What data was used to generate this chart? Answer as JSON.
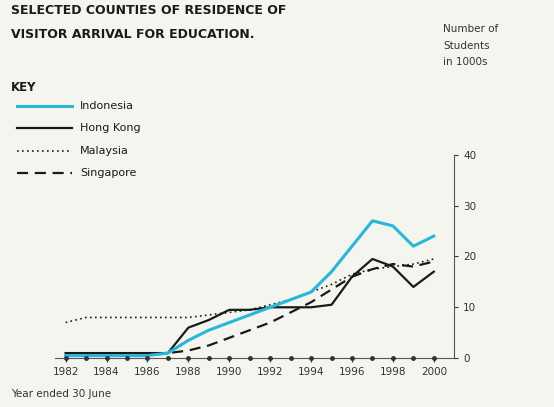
{
  "title_line1": "SELECTED COUNTIES OF RESIDENCE OF",
  "title_line2": "VISITOR ARRIVAL FOR EDUCATION.",
  "ylabel_text": "Number of\nStudents\nin 1000s",
  "xlabel": "Year ended 30 June",
  "key_label": "KEY",
  "ylim": [
    0,
    40
  ],
  "yticks": [
    0,
    10,
    20,
    30,
    40
  ],
  "years": [
    1982,
    1983,
    1984,
    1985,
    1986,
    1987,
    1988,
    1989,
    1990,
    1991,
    1992,
    1993,
    1994,
    1995,
    1996,
    1997,
    1998,
    1999,
    2000
  ],
  "indonesia": [
    0.5,
    0.5,
    0.5,
    0.5,
    0.5,
    1.0,
    3.5,
    5.5,
    7.0,
    8.5,
    10.0,
    11.5,
    13.0,
    17.0,
    22.0,
    27.0,
    26.0,
    22.0,
    24.0
  ],
  "hong_kong": [
    1.0,
    1.0,
    1.0,
    1.0,
    1.0,
    1.0,
    6.0,
    7.5,
    9.5,
    9.5,
    10.0,
    10.0,
    10.0,
    10.5,
    16.0,
    19.5,
    18.0,
    14.0,
    17.0
  ],
  "malaysia": [
    7.0,
    8.0,
    8.0,
    8.0,
    8.0,
    8.0,
    8.0,
    8.5,
    9.0,
    9.5,
    10.5,
    11.5,
    13.0,
    14.5,
    16.5,
    17.5,
    18.0,
    18.5,
    19.5
  ],
  "singapore": [
    0.5,
    0.5,
    0.5,
    0.5,
    0.5,
    1.0,
    1.5,
    2.5,
    4.0,
    5.5,
    7.0,
    9.0,
    11.0,
    13.5,
    16.0,
    17.5,
    18.5,
    18.0,
    19.0
  ],
  "indonesia_color": "#29b6d8",
  "hong_kong_color": "#1a1a1a",
  "malaysia_color": "#1a1a1a",
  "singapore_color": "#1a1a1a",
  "background_color": "#f5f5f0",
  "xticks": [
    1982,
    1984,
    1986,
    1988,
    1990,
    1992,
    1994,
    1996,
    1998,
    2000
  ]
}
